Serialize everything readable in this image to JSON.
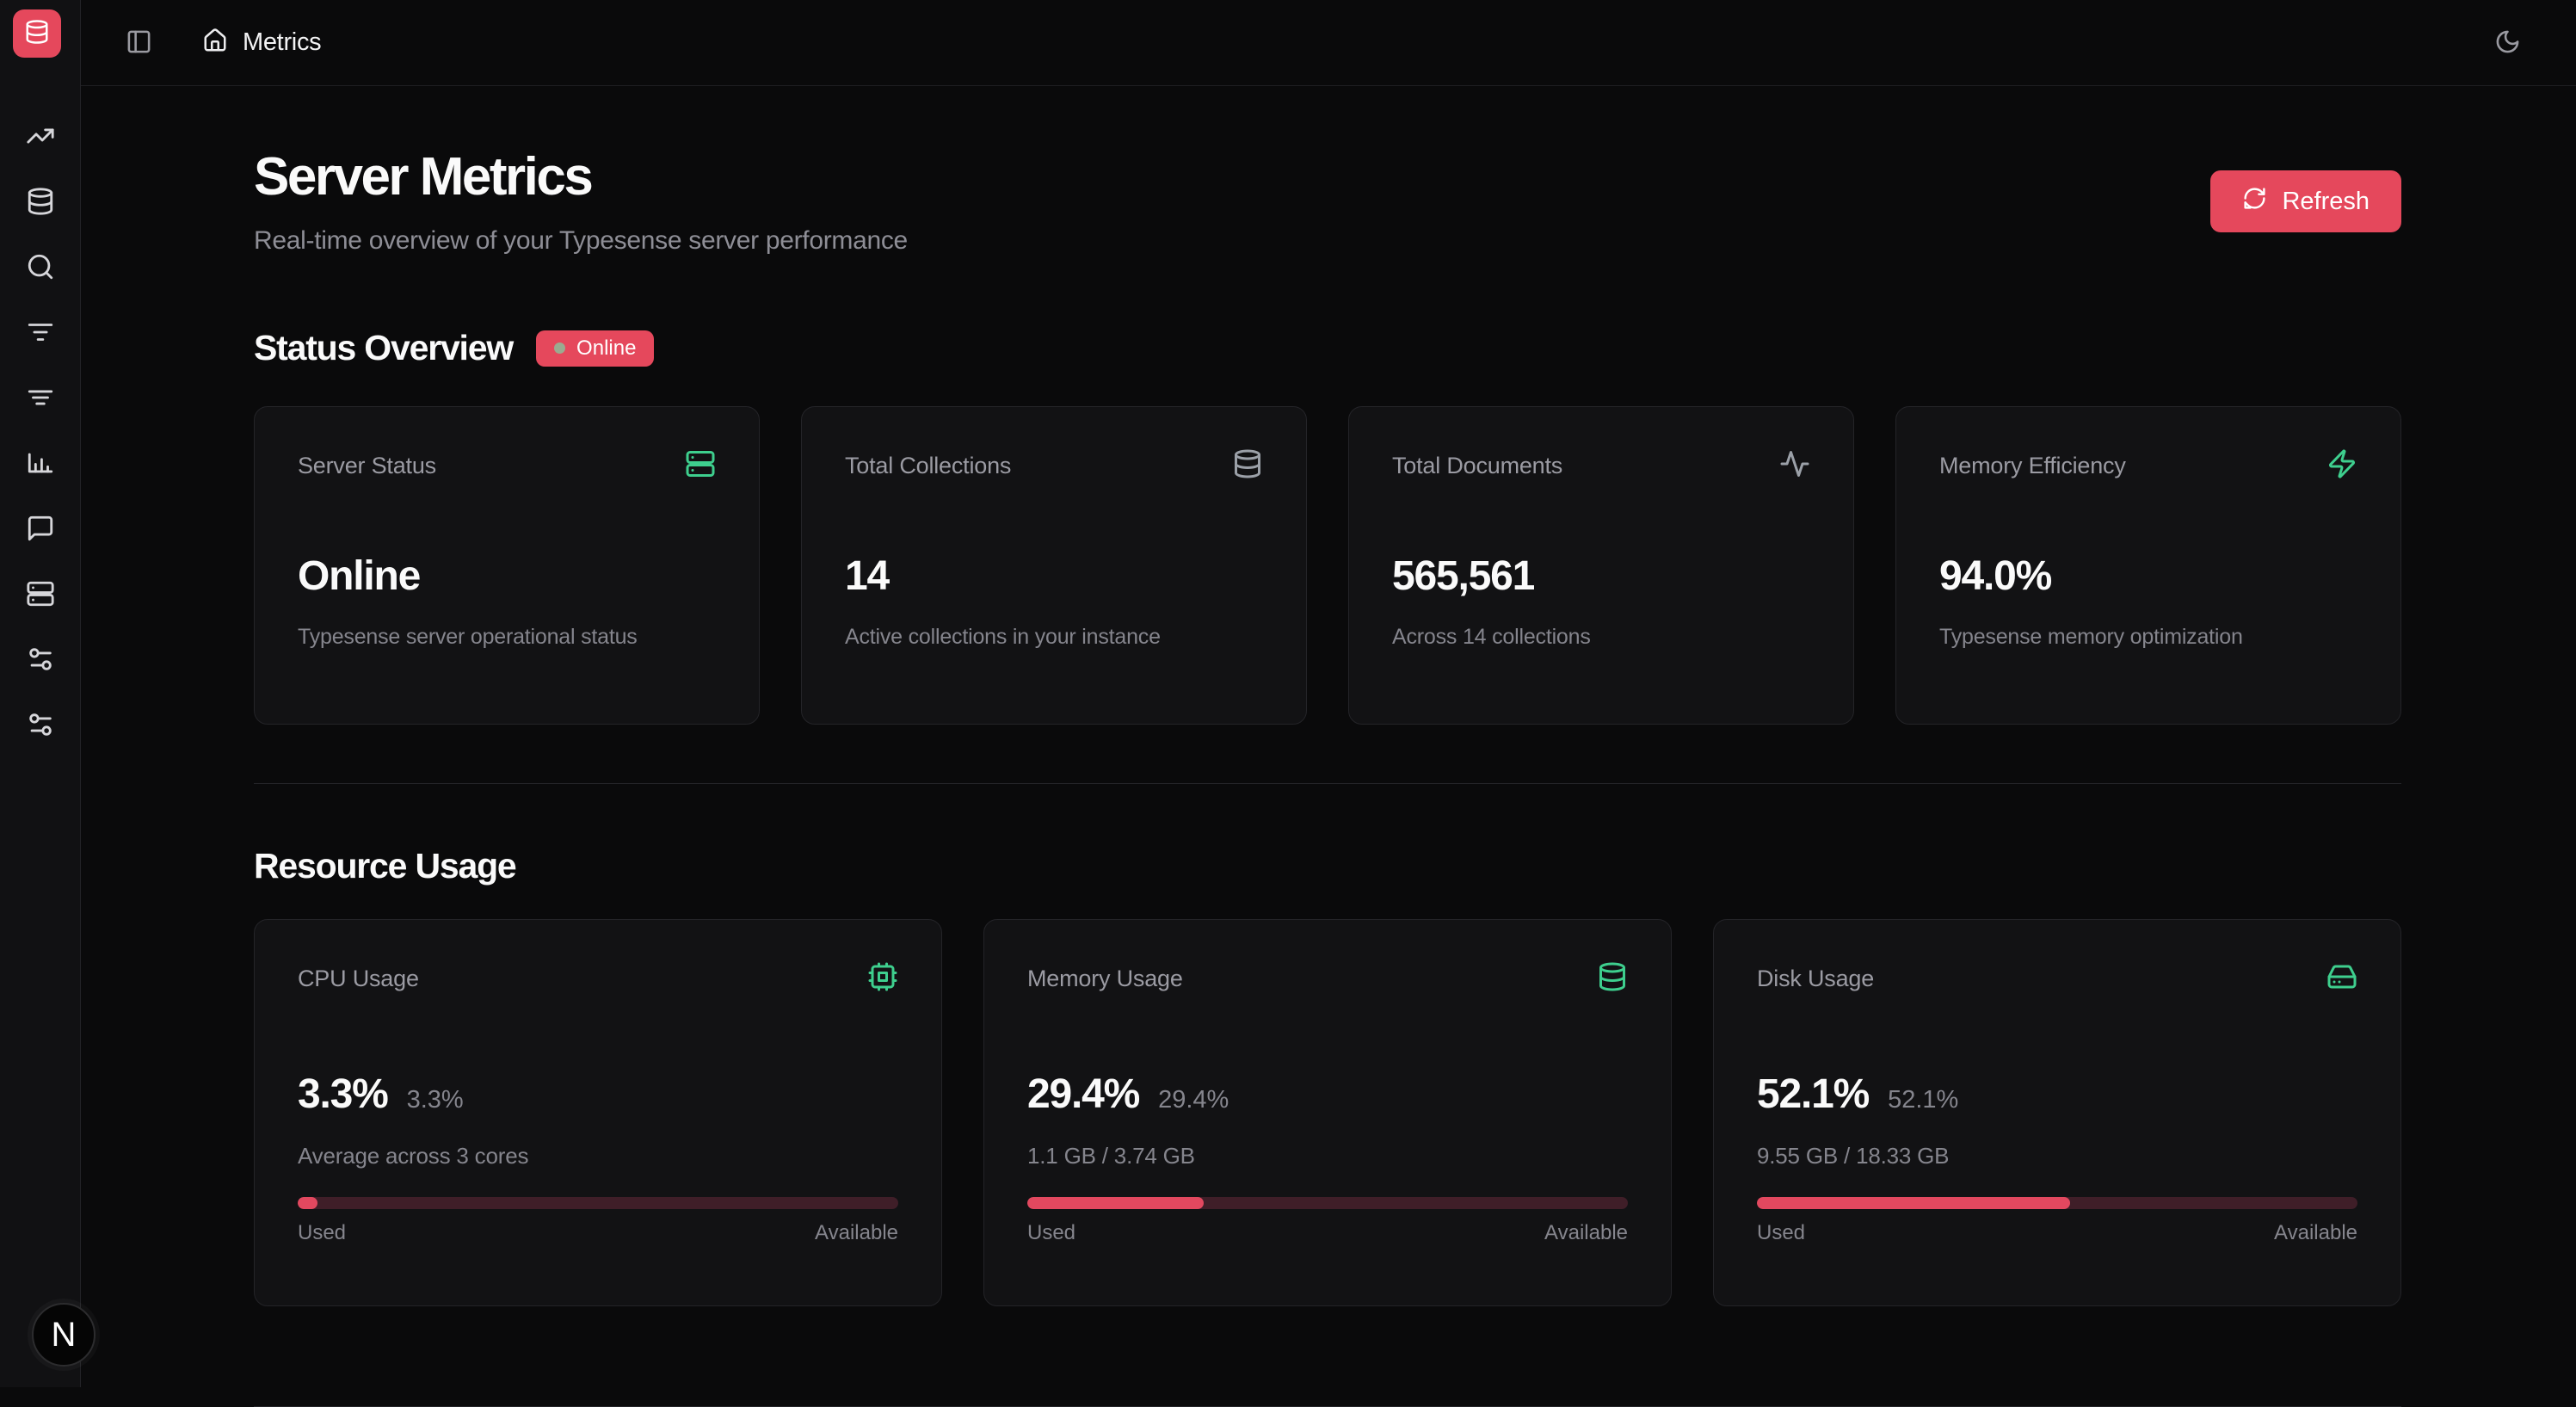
{
  "theme": {
    "accent": "#e5485c",
    "green": "#3ecf8e",
    "progress_fill": "#e2485f",
    "progress_track": "#3f1e28",
    "online_dot": "#9aab90"
  },
  "topbar": {
    "title": "Metrics"
  },
  "sidebar": {
    "icons": [
      "trending-up",
      "database",
      "search",
      "filter",
      "filter-alt",
      "bar-chart",
      "message-square",
      "server",
      "sliders",
      "sliders-alt"
    ]
  },
  "page_header": {
    "title": "Server Metrics",
    "subtitle": "Real-time overview of your Typesense server performance",
    "refresh_label": "Refresh"
  },
  "status_overview": {
    "heading": "Status Overview",
    "badge_label": "Online",
    "cards": [
      {
        "title": "Server Status",
        "icon": "server",
        "value": "Online",
        "description": "Typesense server operational status"
      },
      {
        "title": "Total Collections",
        "icon": "database",
        "value": "14",
        "description": "Active collections in your instance"
      },
      {
        "title": "Total Documents",
        "icon": "activity",
        "value": "565,561",
        "description": "Across 14 collections"
      },
      {
        "title": "Memory Efficiency",
        "icon": "zap",
        "value": "94.0%",
        "description": "Typesense memory optimization"
      }
    ]
  },
  "resource_usage": {
    "heading": "Resource Usage",
    "used_label": "Used",
    "available_label": "Available",
    "cards": [
      {
        "title": "CPU Usage",
        "icon": "cpu",
        "value": "3.3%",
        "value_secondary": "3.3%",
        "description": "Average across 3 cores",
        "percent_used": 3.3
      },
      {
        "title": "Memory Usage",
        "icon": "database",
        "value": "29.4%",
        "value_secondary": "29.4%",
        "description": "1.1 GB / 3.74 GB",
        "percent_used": 29.4
      },
      {
        "title": "Disk Usage",
        "icon": "hard-drive",
        "value": "52.1%",
        "value_secondary": "52.1%",
        "description": "9.55 GB / 18.33 GB",
        "percent_used": 52.1
      }
    ]
  },
  "dev_badge": {
    "initial": "N"
  }
}
